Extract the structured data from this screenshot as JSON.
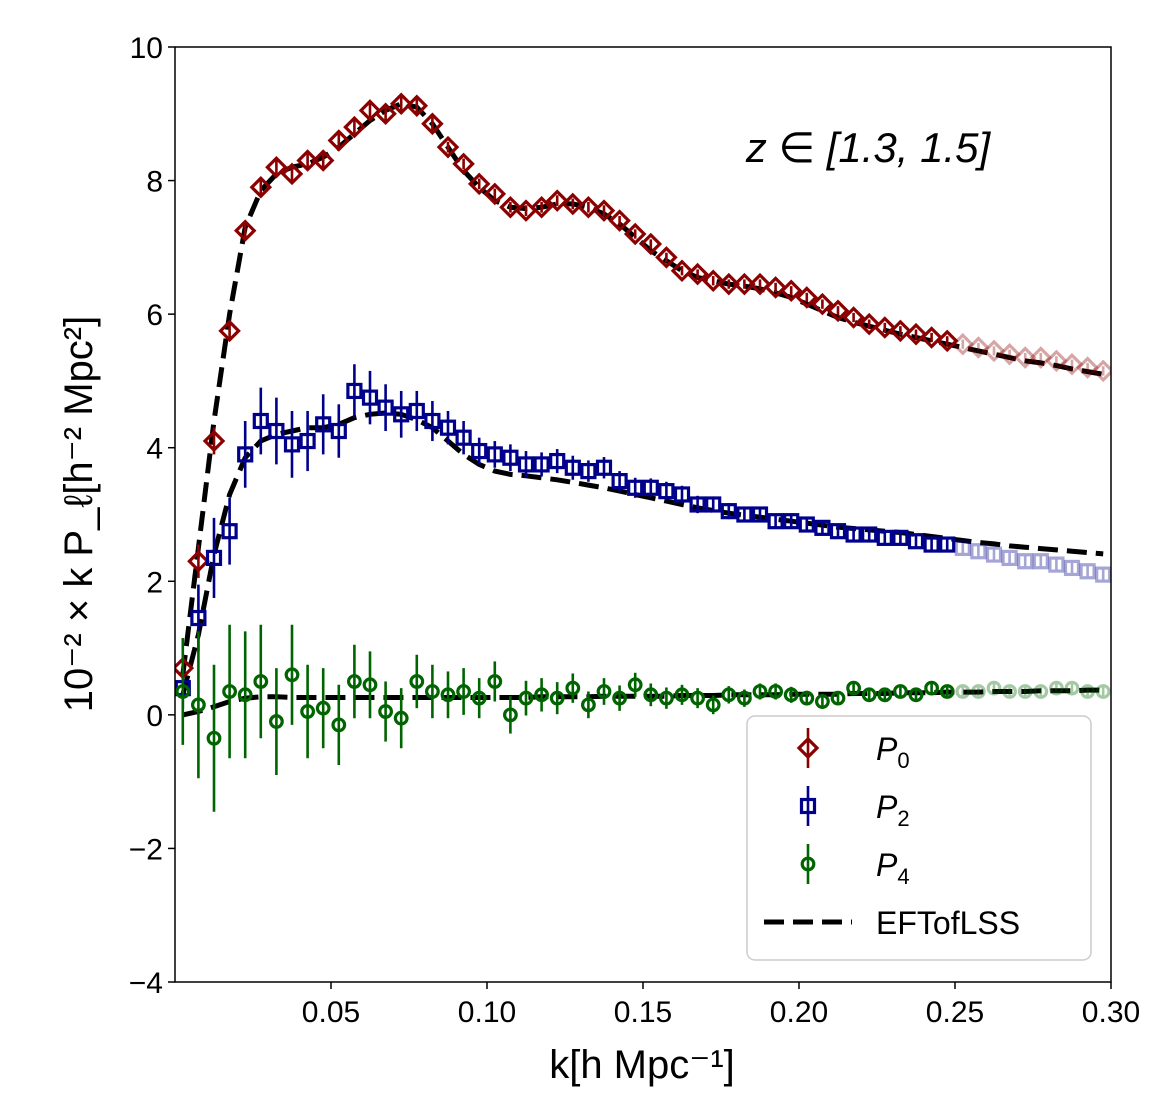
{
  "chart_data": {
    "type": "scatter",
    "title": "",
    "annotation": "z ∈ [1.3, 1.5]",
    "xlabel": "k[h Mpc⁻¹]",
    "ylabel": "10⁻² × k P_ℓ[h⁻² Mpc²]",
    "xlim": [
      0.0,
      0.3
    ],
    "ylim": [
      -4,
      10
    ],
    "xticks": [
      0.05,
      0.1,
      0.15,
      0.2,
      0.25,
      0.3
    ],
    "xtick_labels": [
      "0.05",
      "0.10",
      "0.15",
      "0.20",
      "0.25",
      "0.30"
    ],
    "yticks": [
      -4,
      -2,
      0,
      2,
      4,
      6,
      8,
      10
    ],
    "ytick_labels": [
      "−4",
      "−2",
      "0",
      "2",
      "4",
      "6",
      "8",
      "10"
    ],
    "legend_position": "lower-right",
    "fit_kmax": 0.25,
    "colors": {
      "P0": "#8b0000",
      "P2": "#00008b",
      "P4": "#006400",
      "model": "#000000"
    },
    "series": [
      {
        "name": "P0",
        "legend_label": "P",
        "legend_sub": "0",
        "marker": "diamond",
        "x": [
          0.0025,
          0.0075,
          0.0125,
          0.0175,
          0.0225,
          0.0275,
          0.0325,
          0.0375,
          0.0425,
          0.0475,
          0.0525,
          0.0575,
          0.0625,
          0.0675,
          0.0725,
          0.0775,
          0.0825,
          0.0875,
          0.0925,
          0.0975,
          0.1025,
          0.1075,
          0.1125,
          0.1175,
          0.1225,
          0.1275,
          0.1325,
          0.1375,
          0.1425,
          0.1475,
          0.1525,
          0.1575,
          0.1625,
          0.1675,
          0.1725,
          0.1775,
          0.1825,
          0.1875,
          0.1925,
          0.1975,
          0.2025,
          0.2075,
          0.2125,
          0.2175,
          0.2225,
          0.2275,
          0.2325,
          0.2375,
          0.2425,
          0.2475,
          0.2525,
          0.2575,
          0.2625,
          0.2675,
          0.2725,
          0.2775,
          0.2825,
          0.2875,
          0.2925,
          0.2975
        ],
        "values": [
          0.7,
          2.3,
          4.1,
          5.75,
          7.25,
          7.9,
          8.2,
          8.1,
          8.3,
          8.3,
          8.6,
          8.8,
          9.05,
          9.0,
          9.15,
          9.12,
          8.85,
          8.5,
          8.25,
          7.95,
          7.8,
          7.6,
          7.55,
          7.6,
          7.7,
          7.65,
          7.6,
          7.55,
          7.4,
          7.2,
          7.05,
          6.85,
          6.65,
          6.6,
          6.5,
          6.45,
          6.45,
          6.45,
          6.4,
          6.35,
          6.25,
          6.15,
          6.05,
          5.95,
          5.85,
          5.8,
          5.75,
          5.7,
          5.65,
          5.6,
          5.55,
          5.5,
          5.45,
          5.4,
          5.35,
          5.35,
          5.3,
          5.25,
          5.2,
          5.15
        ],
        "errors": [
          0.15,
          0.25,
          0.2,
          0.15,
          0.12,
          0.12,
          0.12,
          0.1,
          0.1,
          0.1,
          0.1,
          0.1,
          0.1,
          0.1,
          0.1,
          0.1,
          0.1,
          0.08,
          0.08,
          0.08,
          0.08,
          0.08,
          0.08,
          0.08,
          0.08,
          0.08,
          0.08,
          0.08,
          0.07,
          0.07,
          0.07,
          0.07,
          0.07,
          0.07,
          0.07,
          0.07,
          0.07,
          0.07,
          0.07,
          0.07,
          0.07,
          0.07,
          0.07,
          0.07,
          0.07,
          0.07,
          0.07,
          0.07,
          0.07,
          0.07,
          0.07,
          0.07,
          0.07,
          0.07,
          0.07,
          0.07,
          0.07,
          0.07,
          0.07,
          0.07
        ]
      },
      {
        "name": "P2",
        "legend_label": "P",
        "legend_sub": "2",
        "marker": "square",
        "x": [
          0.0025,
          0.0075,
          0.0125,
          0.0175,
          0.0225,
          0.0275,
          0.0325,
          0.0375,
          0.0425,
          0.0475,
          0.0525,
          0.0575,
          0.0625,
          0.0675,
          0.0725,
          0.0775,
          0.0825,
          0.0875,
          0.0925,
          0.0975,
          0.1025,
          0.1075,
          0.1125,
          0.1175,
          0.1225,
          0.1275,
          0.1325,
          0.1375,
          0.1425,
          0.1475,
          0.1525,
          0.1575,
          0.1625,
          0.1675,
          0.1725,
          0.1775,
          0.1825,
          0.1875,
          0.1925,
          0.1975,
          0.2025,
          0.2075,
          0.2125,
          0.2175,
          0.2225,
          0.2275,
          0.2325,
          0.2375,
          0.2425,
          0.2475,
          0.2525,
          0.2575,
          0.2625,
          0.2675,
          0.2725,
          0.2775,
          0.2825,
          0.2875,
          0.2925,
          0.2975
        ],
        "values": [
          0.4,
          1.45,
          2.35,
          2.75,
          3.9,
          4.4,
          4.25,
          4.05,
          4.1,
          4.35,
          4.25,
          4.85,
          4.75,
          4.6,
          4.5,
          4.55,
          4.4,
          4.3,
          4.15,
          3.95,
          3.9,
          3.85,
          3.75,
          3.75,
          3.8,
          3.7,
          3.65,
          3.7,
          3.5,
          3.4,
          3.4,
          3.35,
          3.3,
          3.15,
          3.15,
          3.05,
          3.0,
          3.0,
          2.9,
          2.9,
          2.85,
          2.8,
          2.75,
          2.7,
          2.7,
          2.65,
          2.65,
          2.6,
          2.55,
          2.55,
          2.5,
          2.45,
          2.4,
          2.35,
          2.3,
          2.3,
          2.25,
          2.2,
          2.15,
          2.1
        ],
        "errors": [
          0.3,
          0.5,
          0.6,
          0.5,
          0.5,
          0.5,
          0.5,
          0.5,
          0.45,
          0.45,
          0.4,
          0.4,
          0.4,
          0.35,
          0.35,
          0.3,
          0.3,
          0.25,
          0.25,
          0.2,
          0.2,
          0.2,
          0.2,
          0.18,
          0.18,
          0.18,
          0.16,
          0.16,
          0.15,
          0.15,
          0.14,
          0.14,
          0.13,
          0.13,
          0.12,
          0.12,
          0.12,
          0.11,
          0.11,
          0.11,
          0.1,
          0.1,
          0.1,
          0.1,
          0.1,
          0.1,
          0.1,
          0.1,
          0.1,
          0.1,
          0.1,
          0.1,
          0.1,
          0.1,
          0.1,
          0.1,
          0.1,
          0.1,
          0.1,
          0.1
        ]
      },
      {
        "name": "P4",
        "legend_label": "P",
        "legend_sub": "4",
        "marker": "circle",
        "x": [
          0.0025,
          0.0075,
          0.0125,
          0.0175,
          0.0225,
          0.0275,
          0.0325,
          0.0375,
          0.0425,
          0.0475,
          0.0525,
          0.0575,
          0.0625,
          0.0675,
          0.0725,
          0.0775,
          0.0825,
          0.0875,
          0.0925,
          0.0975,
          0.1025,
          0.1075,
          0.1125,
          0.1175,
          0.1225,
          0.1275,
          0.1325,
          0.1375,
          0.1425,
          0.1475,
          0.1525,
          0.1575,
          0.1625,
          0.1675,
          0.1725,
          0.1775,
          0.1825,
          0.1875,
          0.1925,
          0.1975,
          0.2025,
          0.2075,
          0.2125,
          0.2175,
          0.2225,
          0.2275,
          0.2325,
          0.2375,
          0.2425,
          0.2475,
          0.2525,
          0.2575,
          0.2625,
          0.2675,
          0.2725,
          0.2775,
          0.2825,
          0.2875,
          0.2925,
          0.2975
        ],
        "values": [
          0.35,
          0.15,
          -0.35,
          0.35,
          0.3,
          0.5,
          -0.1,
          0.6,
          0.05,
          0.1,
          -0.15,
          0.5,
          0.45,
          0.05,
          -0.05,
          0.5,
          0.35,
          0.3,
          0.35,
          0.25,
          0.5,
          0.0,
          0.25,
          0.3,
          0.25,
          0.4,
          0.15,
          0.35,
          0.25,
          0.45,
          0.3,
          0.25,
          0.3,
          0.25,
          0.15,
          0.3,
          0.25,
          0.35,
          0.35,
          0.3,
          0.25,
          0.2,
          0.25,
          0.4,
          0.3,
          0.3,
          0.35,
          0.3,
          0.4,
          0.35,
          0.35,
          0.35,
          0.4,
          0.35,
          0.35,
          0.35,
          0.4,
          0.4,
          0.35,
          0.35
        ],
        "errors": [
          0.8,
          1.1,
          1.1,
          1.0,
          0.95,
          0.85,
          0.8,
          0.75,
          0.7,
          0.6,
          0.6,
          0.55,
          0.5,
          0.45,
          0.45,
          0.4,
          0.4,
          0.35,
          0.35,
          0.3,
          0.3,
          0.28,
          0.26,
          0.25,
          0.24,
          0.22,
          0.2,
          0.2,
          0.19,
          0.18,
          0.17,
          0.16,
          0.15,
          0.15,
          0.14,
          0.13,
          0.13,
          0.12,
          0.12,
          0.12,
          0.11,
          0.11,
          0.1,
          0.1,
          0.1,
          0.1,
          0.1,
          0.1,
          0.1,
          0.1,
          0.1,
          0.1,
          0.1,
          0.1,
          0.1,
          0.1,
          0.1,
          0.1,
          0.1,
          0.1
        ]
      }
    ],
    "models": [
      {
        "name": "EFTofLSS",
        "legend_label": "EFTofLSS",
        "curves": [
          {
            "for": "P0",
            "x": [
              0.0025,
              0.0075,
              0.0125,
              0.0175,
              0.0225,
              0.0275,
              0.0325,
              0.0375,
              0.0425,
              0.0475,
              0.0525,
              0.0575,
              0.0625,
              0.0675,
              0.0725,
              0.0775,
              0.0825,
              0.0875,
              0.0925,
              0.0975,
              0.1025,
              0.1075,
              0.1125,
              0.1175,
              0.1225,
              0.1275,
              0.1325,
              0.1375,
              0.1425,
              0.1475,
              0.1525,
              0.1575,
              0.1625,
              0.1675,
              0.1725,
              0.1775,
              0.1825,
              0.1875,
              0.1925,
              0.1975,
              0.2025,
              0.2075,
              0.2125,
              0.2175,
              0.2225,
              0.2275,
              0.2325,
              0.2375,
              0.2425,
              0.2475,
              0.2525,
              0.2575,
              0.2625,
              0.2675,
              0.2725,
              0.2775,
              0.2825,
              0.2875,
              0.2925,
              0.2975
            ],
            "values": [
              0.6,
              2.5,
              4.4,
              6.0,
              7.3,
              7.85,
              8.1,
              8.2,
              8.25,
              8.35,
              8.5,
              8.7,
              8.9,
              9.05,
              9.15,
              9.1,
              8.85,
              8.5,
              8.15,
              7.9,
              7.7,
              7.6,
              7.58,
              7.6,
              7.65,
              7.65,
              7.6,
              7.5,
              7.35,
              7.15,
              6.95,
              6.8,
              6.65,
              6.55,
              6.5,
              6.45,
              6.42,
              6.38,
              6.32,
              6.25,
              6.15,
              6.05,
              5.95,
              5.88,
              5.82,
              5.76,
              5.7,
              5.65,
              5.6,
              5.55,
              5.5,
              5.45,
              5.4,
              5.35,
              5.3,
              5.27,
              5.23,
              5.18,
              5.14,
              5.1
            ]
          },
          {
            "for": "P2",
            "x": [
              0.0025,
              0.0075,
              0.0125,
              0.0175,
              0.0225,
              0.0275,
              0.0325,
              0.0375,
              0.0425,
              0.0475,
              0.0525,
              0.0575,
              0.0625,
              0.0675,
              0.0725,
              0.0775,
              0.0825,
              0.0875,
              0.0925,
              0.0975,
              0.1025,
              0.1075,
              0.1125,
              0.1175,
              0.1225,
              0.1275,
              0.1325,
              0.1375,
              0.1425,
              0.1475,
              0.1525,
              0.1575,
              0.1625,
              0.1675,
              0.1725,
              0.1775,
              0.1825,
              0.1875,
              0.1925,
              0.1975,
              0.2025,
              0.2075,
              0.2125,
              0.2175,
              0.2225,
              0.2275,
              0.2325,
              0.2375,
              0.2425,
              0.2475,
              0.2525,
              0.2575,
              0.2625,
              0.2675,
              0.2725,
              0.2775,
              0.2825,
              0.2875,
              0.2925,
              0.2975
            ],
            "values": [
              0.3,
              1.2,
              2.4,
              3.3,
              3.85,
              4.1,
              4.2,
              4.25,
              4.3,
              4.3,
              4.35,
              4.45,
              4.5,
              4.52,
              4.5,
              4.42,
              4.3,
              4.1,
              3.9,
              3.75,
              3.65,
              3.6,
              3.58,
              3.55,
              3.52,
              3.48,
              3.44,
              3.4,
              3.35,
              3.3,
              3.25,
              3.2,
              3.15,
              3.1,
              3.06,
              3.02,
              2.99,
              2.96,
              2.93,
              2.9,
              2.87,
              2.84,
              2.81,
              2.79,
              2.77,
              2.75,
              2.73,
              2.7,
              2.67,
              2.64,
              2.61,
              2.58,
              2.56,
              2.53,
              2.51,
              2.49,
              2.47,
              2.45,
              2.43,
              2.41
            ]
          },
          {
            "for": "P4",
            "x": [
              0.0025,
              0.0075,
              0.0125,
              0.0175,
              0.0225,
              0.0275,
              0.0325,
              0.0375,
              0.0425,
              0.0475,
              0.0525,
              0.0575,
              0.0625,
              0.0675,
              0.0725,
              0.0775,
              0.0825,
              0.0875,
              0.0925,
              0.0975,
              0.1025,
              0.1075,
              0.1125,
              0.1175,
              0.1225,
              0.1275,
              0.1325,
              0.1375,
              0.1425,
              0.1475,
              0.1525,
              0.1575,
              0.1625,
              0.1675,
              0.1725,
              0.1775,
              0.1825,
              0.1875,
              0.1925,
              0.1975,
              0.2025,
              0.2075,
              0.2125,
              0.2175,
              0.2225,
              0.2275,
              0.2325,
              0.2375,
              0.2425,
              0.2475,
              0.2525,
              0.2575,
              0.2625,
              0.2675,
              0.2725,
              0.2775,
              0.2825,
              0.2875,
              0.2925,
              0.2975
            ],
            "values": [
              0.0,
              0.05,
              0.12,
              0.2,
              0.25,
              0.27,
              0.27,
              0.26,
              0.26,
              0.26,
              0.26,
              0.26,
              0.26,
              0.26,
              0.26,
              0.26,
              0.26,
              0.26,
              0.26,
              0.26,
              0.26,
              0.26,
              0.26,
              0.27,
              0.27,
              0.27,
              0.27,
              0.28,
              0.28,
              0.28,
              0.28,
              0.28,
              0.29,
              0.29,
              0.29,
              0.3,
              0.3,
              0.3,
              0.3,
              0.31,
              0.31,
              0.31,
              0.31,
              0.32,
              0.32,
              0.32,
              0.33,
              0.33,
              0.33,
              0.34,
              0.34,
              0.34,
              0.35,
              0.35,
              0.35,
              0.36,
              0.36,
              0.36,
              0.37,
              0.37
            ]
          }
        ]
      }
    ]
  }
}
